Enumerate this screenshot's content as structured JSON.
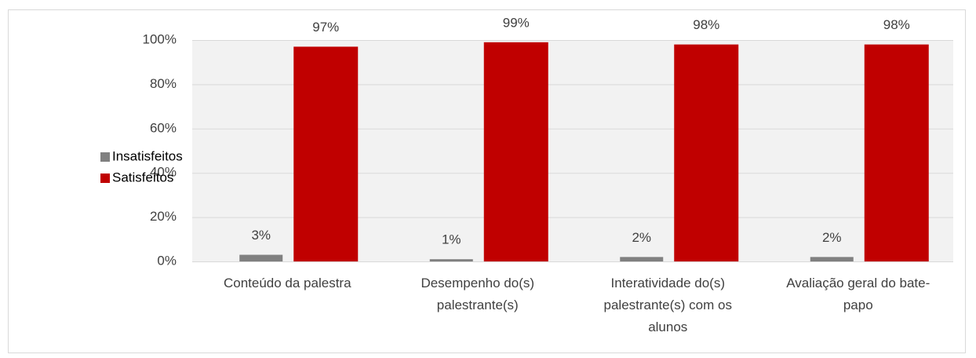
{
  "chart_data": {
    "type": "bar",
    "categories": [
      "Conteúdo da palestra",
      "Desempenho do(s) palestrante(s)",
      "Interatividade do(s) palestrante(s) com os alunos",
      "Avaliação geral do bate-papo"
    ],
    "series": [
      {
        "name": "Insatisfeitos",
        "color": "#808080",
        "values": [
          3,
          1,
          2,
          2
        ],
        "value_labels": [
          "3%",
          "1%",
          "2%",
          "2%"
        ]
      },
      {
        "name": "Satisfeitos",
        "color": "#c00000",
        "values": [
          97,
          99,
          98,
          98
        ],
        "value_labels": [
          "97%",
          "99%",
          "98%",
          "98%"
        ]
      }
    ],
    "ylim": [
      0,
      100
    ],
    "yticks": [
      {
        "value": 0,
        "label": "0%"
      },
      {
        "value": 20,
        "label": "20%"
      },
      {
        "value": 40,
        "label": "40%"
      },
      {
        "value": 60,
        "label": "60%"
      },
      {
        "value": 80,
        "label": "80%"
      },
      {
        "value": 100,
        "label": "100%"
      }
    ],
    "grid": true,
    "legend": "left"
  }
}
